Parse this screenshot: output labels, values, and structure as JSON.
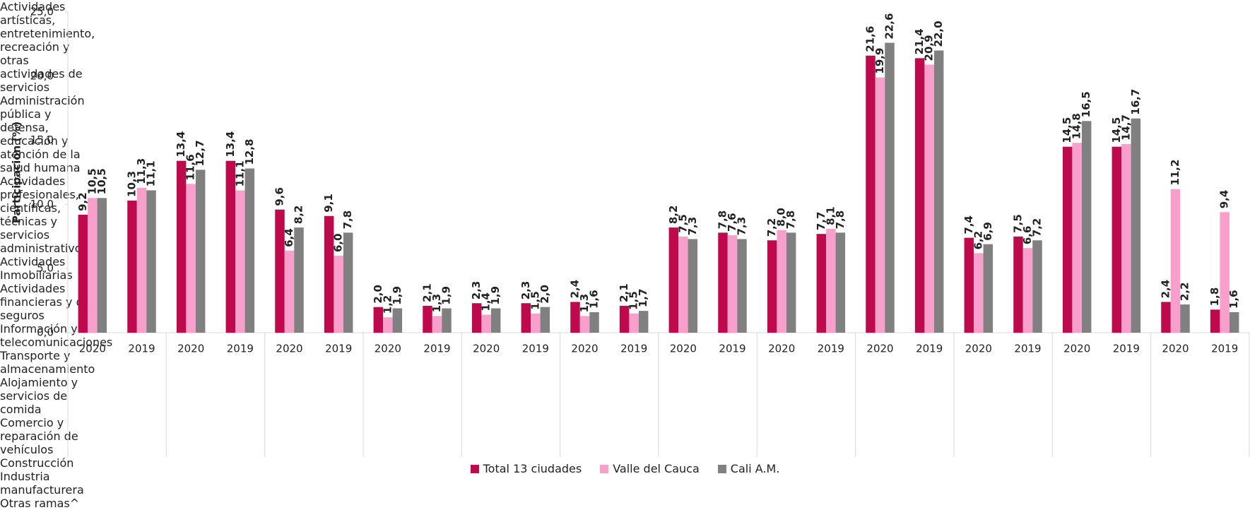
{
  "chart_data": {
    "type": "bar",
    "y_label": "Participación (%)",
    "categories": [
      "2020",
      "2019",
      "2020",
      "2019",
      "2020",
      "2019",
      "2020",
      "2019",
      "2020",
      "2019",
      "2020",
      "2019",
      "2020",
      "2019",
      "2020",
      "2019",
      "2020",
      "2019",
      "2020",
      "2019",
      "2020",
      "2019",
      "2020",
      "2019"
    ],
    "groups": [
      "Actividades artísticas, entretenimiento, recreación y otras actividades de servicios",
      "Administración pública y defensa, educación y atención de la salud humana",
      "Actividades profesionales, científicas, técnicas y servicios administrativos",
      "Actividades Inmobiliarias",
      "Actividades financieras y de seguros",
      "Información y telecomunicaciones",
      "Transporte y almacenamiento",
      "Alojamiento y servicios de comida",
      "Comercio y reparación de vehículos",
      "Construcción",
      "Industria manufacturera",
      "Otras ramas^"
    ],
    "series": [
      {
        "name": "Total 13 ciudades",
        "color": "#be0a4c",
        "values": [
          9.2,
          10.3,
          13.4,
          13.4,
          9.6,
          9.1,
          2.0,
          2.1,
          2.3,
          2.3,
          2.4,
          2.1,
          8.2,
          7.8,
          7.2,
          7.7,
          21.6,
          21.4,
          7.4,
          7.5,
          14.5,
          14.5,
          2.4,
          1.8
        ],
        "value_labels": [
          "9,2",
          "10,3",
          "13,4",
          "13,4",
          "9,6",
          "9,1",
          "2,0",
          "2,1",
          "2,3",
          "2,3",
          "2,4",
          "2,1",
          "8,2",
          "7,8",
          "7,2",
          "7,7",
          "21,6",
          "21,4",
          "7,4",
          "7,5",
          "14,5",
          "14,5",
          "2,4",
          "1,8"
        ]
      },
      {
        "name": "Valle del Cauca",
        "color": "#f99fcb",
        "values": [
          10.5,
          11.3,
          11.6,
          11.1,
          6.4,
          6.0,
          1.2,
          1.3,
          1.4,
          1.5,
          1.3,
          1.5,
          7.5,
          7.6,
          8.0,
          8.1,
          19.9,
          20.9,
          6.2,
          6.6,
          14.8,
          14.7,
          11.2,
          9.4
        ],
        "value_labels": [
          "10,5",
          "11,3",
          "11,6",
          "11,1",
          "6,4",
          "6,0",
          "1,2",
          "1,3",
          "1,4",
          "1,5",
          "1,3",
          "1,5",
          "7,5",
          "7,6",
          "8,0",
          "8,1",
          "19,9",
          "20,9",
          "6,2",
          "6,6",
          "14,8",
          "14,7",
          "11,2",
          "9,4"
        ]
      },
      {
        "name": "Cali A.M.",
        "color": "#808080",
        "values": [
          10.5,
          11.1,
          12.7,
          12.8,
          8.2,
          7.8,
          1.9,
          1.9,
          1.9,
          2.0,
          1.6,
          1.7,
          7.3,
          7.3,
          7.8,
          7.8,
          22.6,
          22.0,
          6.9,
          7.2,
          16.5,
          16.7,
          2.2,
          1.6
        ],
        "value_labels": [
          "10,5",
          "11,1",
          "12,7",
          "12,8",
          "8,2",
          "7,8",
          "1,9",
          "1,9",
          "1,9",
          "2,0",
          "1,6",
          "1,7",
          "7,3",
          "7,3",
          "7,8",
          "7,8",
          "22,6",
          "22,0",
          "6,9",
          "7,2",
          "16,5",
          "16,7",
          "2,2",
          "1,6"
        ]
      }
    ],
    "ylim": [
      0,
      25
    ],
    "yticks": [
      {
        "value": 0,
        "label": "0,0"
      },
      {
        "value": 5,
        "label": "5,0"
      },
      {
        "value": 10,
        "label": "10,0"
      },
      {
        "value": 15,
        "label": "15,0"
      },
      {
        "value": 20,
        "label": "20,0"
      },
      {
        "value": 25,
        "label": "25,0"
      }
    ],
    "grid": false
  }
}
